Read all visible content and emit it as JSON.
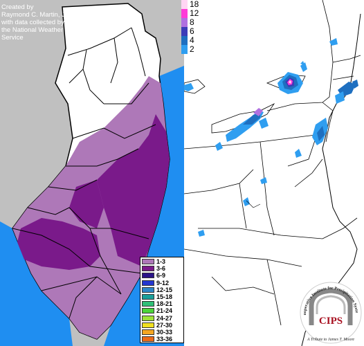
{
  "credit_lines": [
    "Created by",
    "Raymond C. Martin, Jr.",
    "with data collected by",
    "the National Weather",
    "Service"
  ],
  "legend_left": [
    {
      "label": "1-3",
      "color": "#ae78b8"
    },
    {
      "label": "3-6",
      "color": "#7a1a8a"
    },
    {
      "label": "6-9",
      "color": "#2a1488"
    },
    {
      "label": "9-12",
      "color": "#2436d0"
    },
    {
      "label": "12-15",
      "color": "#2f86c8"
    },
    {
      "label": "15-18",
      "color": "#1aa09a"
    },
    {
      "label": "18-21",
      "color": "#2fbf77"
    },
    {
      "label": "21-24",
      "color": "#4bd43a"
    },
    {
      "label": "24-27",
      "color": "#9ee23a"
    },
    {
      "label": "27-30",
      "color": "#f0e020"
    },
    {
      "label": "30-33",
      "color": "#f5a623"
    },
    {
      "label": "33-36",
      "color": "#ec6a18"
    }
  ],
  "legend_right": [
    {
      "label": "18",
      "color": "#ffd6f4"
    },
    {
      "label": "12",
      "color": "#ff3cd8"
    },
    {
      "label": "8",
      "color": "#b070e0"
    },
    {
      "label": "6",
      "color": "#3c3cb8"
    },
    {
      "label": "4",
      "color": "#1e6fc0"
    },
    {
      "label": "2",
      "color": "#2f9ef0"
    }
  ],
  "logo": {
    "acronym": "CIPS",
    "org": "Cooperative Institute for Precipitation Systems",
    "tribute": "A Tribute to James T. Moore"
  }
}
